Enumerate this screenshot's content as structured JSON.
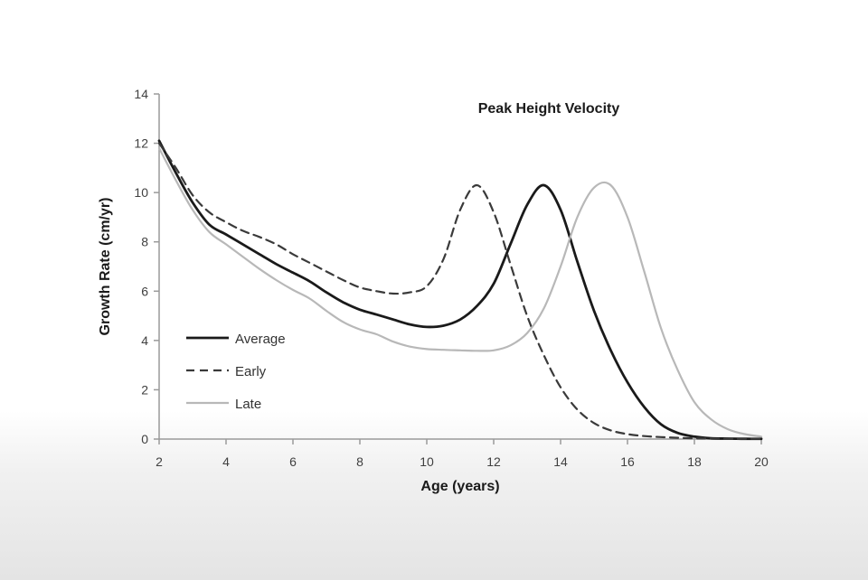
{
  "chart_data": {
    "type": "line",
    "title": "Peak Height Velocity",
    "xlabel": "Age (years)",
    "ylabel": "Growth Rate (cm/yr)",
    "xlim": [
      2,
      20
    ],
    "ylim": [
      0,
      14
    ],
    "xticks": [
      "2",
      "4",
      "6",
      "8",
      "10",
      "12",
      "14",
      "16",
      "18",
      "20"
    ],
    "yticks": [
      "0",
      "2",
      "4",
      "6",
      "8",
      "10",
      "12",
      "14"
    ],
    "grid": false,
    "legend_position": "left",
    "series": [
      {
        "name": "Average",
        "color": "#1a1a1a",
        "dash": "solid",
        "x": [
          2,
          2.5,
          3,
          3.5,
          4,
          4.5,
          5,
          5.5,
          6,
          6.5,
          7,
          7.5,
          8,
          8.5,
          9,
          9.5,
          10,
          10.5,
          11,
          11.5,
          12,
          12.5,
          13,
          13.5,
          14,
          14.5,
          15,
          15.5,
          16,
          16.5,
          17,
          17.5,
          18,
          18.5,
          19,
          19.5,
          20
        ],
        "y": [
          12.1,
          10.8,
          9.6,
          8.7,
          8.3,
          7.9,
          7.5,
          7.1,
          6.75,
          6.4,
          5.95,
          5.55,
          5.25,
          5.05,
          4.85,
          4.65,
          4.55,
          4.6,
          4.85,
          5.4,
          6.3,
          7.9,
          9.5,
          10.3,
          9.3,
          7.2,
          5.2,
          3.6,
          2.3,
          1.3,
          0.6,
          0.25,
          0.1,
          0.03,
          0.02,
          0.01,
          0.01
        ]
      },
      {
        "name": "Early",
        "color": "#3a3a3a",
        "dash": "dashed",
        "x": [
          2,
          2.5,
          3,
          3.5,
          4,
          4.5,
          5,
          5.5,
          6,
          6.5,
          7,
          7.5,
          8,
          8.5,
          9,
          9.5,
          10,
          10.5,
          11,
          11.5,
          12,
          12.5,
          13,
          13.5,
          14,
          14.5,
          15,
          15.5,
          16,
          16.5,
          17,
          17.5,
          18,
          18.5,
          19,
          19.5,
          20
        ],
        "y": [
          12.0,
          11.0,
          9.9,
          9.2,
          8.8,
          8.45,
          8.2,
          7.9,
          7.5,
          7.15,
          6.8,
          6.45,
          6.15,
          6.0,
          5.9,
          5.95,
          6.2,
          7.3,
          9.3,
          10.3,
          9.2,
          7.1,
          5.0,
          3.4,
          2.1,
          1.2,
          0.65,
          0.35,
          0.2,
          0.12,
          0.08,
          0.05,
          0.03,
          0.02,
          0.01,
          0.01,
          0.01
        ]
      },
      {
        "name": "Late",
        "color": "#b8b8b8",
        "dash": "solid",
        "x": [
          2,
          2.5,
          3,
          3.5,
          4,
          4.5,
          5,
          5.5,
          6,
          6.5,
          7,
          7.5,
          8,
          8.5,
          9,
          9.5,
          10,
          10.5,
          11,
          11.5,
          12,
          12.5,
          13,
          13.5,
          14,
          14.5,
          15,
          15.5,
          16,
          16.5,
          17,
          17.5,
          18,
          18.5,
          19,
          19.5,
          20
        ],
        "y": [
          11.8,
          10.5,
          9.3,
          8.4,
          7.9,
          7.4,
          6.9,
          6.45,
          6.05,
          5.7,
          5.2,
          4.75,
          4.45,
          4.25,
          3.95,
          3.75,
          3.65,
          3.62,
          3.6,
          3.58,
          3.6,
          3.8,
          4.3,
          5.3,
          7.0,
          9.0,
          10.2,
          10.3,
          9.0,
          6.8,
          4.5,
          2.8,
          1.5,
          0.8,
          0.4,
          0.2,
          0.1
        ]
      }
    ]
  }
}
